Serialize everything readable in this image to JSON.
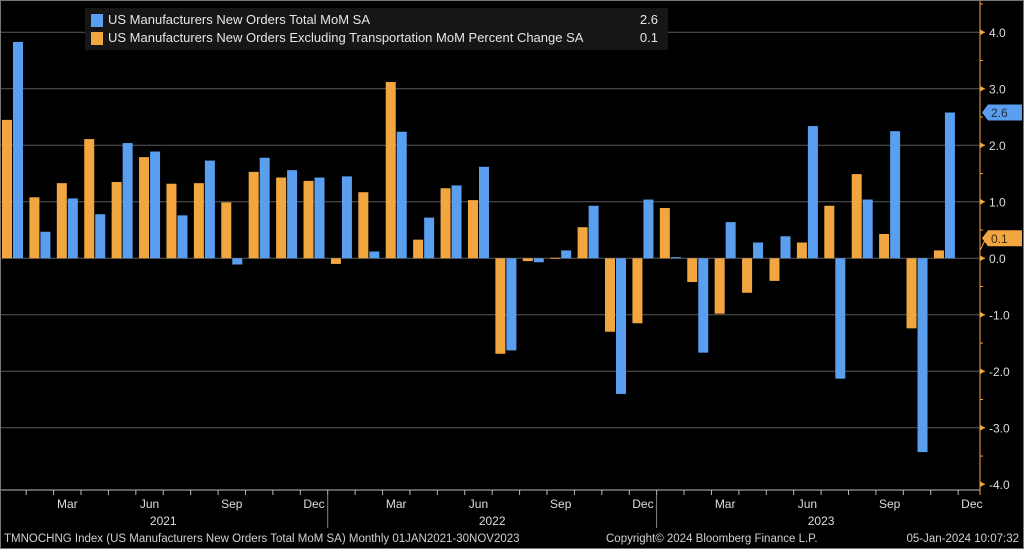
{
  "chart_data": {
    "type": "bar",
    "categories": [
      "Jan 2021",
      "Feb 2021",
      "Mar 2021",
      "Apr 2021",
      "May 2021",
      "Jun 2021",
      "Jul 2021",
      "Aug 2021",
      "Sep 2021",
      "Oct 2021",
      "Nov 2021",
      "Dec 2021",
      "Jan 2022",
      "Feb 2022",
      "Mar 2022",
      "Apr 2022",
      "May 2022",
      "Jun 2022",
      "Jul 2022",
      "Aug 2022",
      "Sep 2022",
      "Oct 2022",
      "Nov 2022",
      "Dec 2022",
      "Jan 2023",
      "Feb 2023",
      "Mar 2023",
      "Apr 2023",
      "May 2023",
      "Jun 2023",
      "Jul 2023",
      "Aug 2023",
      "Sep 2023",
      "Oct 2023",
      "Nov 2023"
    ],
    "series": [
      {
        "name": "US Manufacturers New Orders Total MoM SA",
        "last_value": "2.6",
        "color": "#5a9ef0",
        "values": [
          3.83,
          0.47,
          1.06,
          0.78,
          2.04,
          1.89,
          0.76,
          1.73,
          -0.11,
          1.78,
          1.56,
          1.43,
          1.45,
          0.12,
          2.24,
          0.72,
          1.29,
          1.62,
          -1.63,
          -0.07,
          0.14,
          0.93,
          -2.4,
          1.04,
          0.02,
          -1.67,
          0.64,
          0.28,
          0.39,
          2.34,
          -2.13,
          1.04,
          2.25,
          -3.43,
          2.58
        ]
      },
      {
        "name": "US Manufacturers New Orders Excluding Transportation MoM Percent Change SA",
        "last_value": "0.1",
        "color": "#f2a640",
        "values": [
          2.45,
          1.08,
          1.33,
          2.11,
          1.35,
          1.79,
          1.32,
          1.33,
          0.99,
          1.53,
          1.43,
          1.37,
          -0.1,
          1.17,
          3.12,
          0.33,
          1.24,
          1.03,
          -1.69,
          -0.05,
          0.01,
          0.55,
          -1.3,
          -1.15,
          0.89,
          -0.42,
          -0.98,
          -0.61,
          -0.4,
          0.28,
          0.93,
          1.49,
          0.43,
          -1.24,
          0.14
        ]
      }
    ],
    "ylim": [
      -4.0,
      4.0
    ],
    "yticks": [
      "4.0",
      "3.0",
      "2.0",
      "1.0",
      "0.0",
      "-1.0",
      "-2.0",
      "-3.0",
      "-4.0"
    ],
    "ytick_values": [
      4,
      3,
      2,
      1,
      0,
      -1,
      -2,
      -3,
      -4
    ],
    "y_axis_side": "right",
    "month_labels": [
      {
        "label": "Mar",
        "index": 2
      },
      {
        "label": "Jun",
        "index": 5
      },
      {
        "label": "Sep",
        "index": 8
      },
      {
        "label": "Dec",
        "index": 11
      },
      {
        "label": "Mar",
        "index": 14
      },
      {
        "label": "Jun",
        "index": 17
      },
      {
        "label": "Sep",
        "index": 20
      },
      {
        "label": "Dec",
        "index": 23
      },
      {
        "label": "Mar",
        "index": 26
      },
      {
        "label": "Jun",
        "index": 29
      },
      {
        "label": "Sep",
        "index": 32
      },
      {
        "label": "Dec",
        "index": 35
      }
    ],
    "year_labels": [
      {
        "label": "2021",
        "index": 5.5
      },
      {
        "label": "2022",
        "index": 17.5
      },
      {
        "label": "2023",
        "index": 29.5
      }
    ],
    "grid": true,
    "legend_position": "top-left",
    "background": "#000000"
  },
  "footer": {
    "ticker": "TMNOCHNG Index (US Manufacturers New Orders Total MoM SA)  Monthly 01JAN2021-30NOV2023",
    "copyright": "Copyright© 2024 Bloomberg Finance L.P.",
    "timestamp": "05-Jan-2024 10:07:32"
  }
}
